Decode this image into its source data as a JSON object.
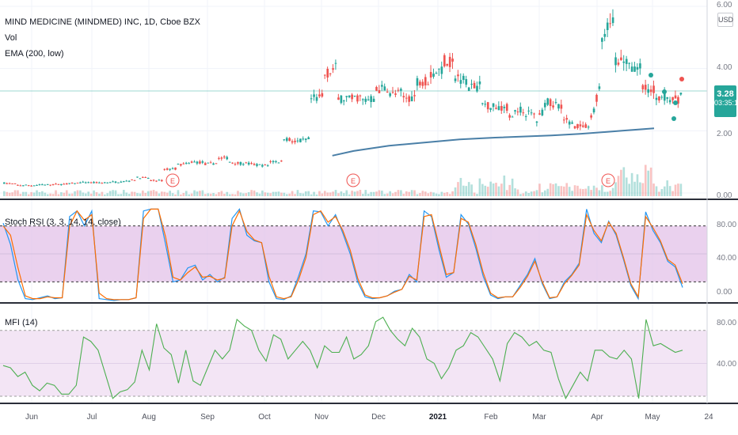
{
  "header": {
    "symbol_title": "MIND MEDICINE (MINDMED) INC, 1D, Cboe BZX",
    "vol_label": "Vol",
    "ema_label": "EMA (200, low)"
  },
  "currency": "USD",
  "last_price": {
    "value": "3.28",
    "countdown": "03:35:12"
  },
  "stoch_label": "Stoch RSI (3, 3, 14, 14, close)",
  "mfi_label": "MFI (14)",
  "colors": {
    "up": "#26a69a",
    "down": "#ef5350",
    "ema": "#4a7fa7",
    "k_line": "#2196f3",
    "d_line": "#ff6d00",
    "stoch_band": "#e1bee7",
    "mfi_band": "#f3e5f5",
    "mfi_line": "#4caf50"
  },
  "chart_data": [
    {
      "type": "candlestick",
      "title": "MIND MEDICINE (MINDMED) INC, 1D, Cboe BZX",
      "x_tick_labels": [
        "Jun",
        "Jul",
        "Aug",
        "Sep",
        "Oct",
        "Nov",
        "Dec",
        "2021",
        "Feb",
        "Mar",
        "Apr",
        "May",
        "24"
      ],
      "y_tick_labels": [
        "0.00",
        "2.00",
        "4.00",
        "6.00"
      ],
      "ylim": [
        0,
        6
      ],
      "price_path": [
        [
          0.32,
          0.32
        ],
        [
          0.28,
          0.25
        ],
        [
          0.25,
          0.24
        ],
        [
          0.27,
          0.26
        ],
        [
          0.28,
          0.27
        ],
        [
          0.3,
          0.3
        ],
        [
          0.34,
          0.33
        ],
        [
          0.33,
          0.32
        ],
        [
          0.34,
          0.35
        ],
        [
          0.36,
          0.37
        ],
        [
          0.44,
          0.5
        ],
        [
          0.48,
          0.4
        ],
        [
          0.4,
          0.75
        ],
        [
          0.79,
          0.9
        ],
        [
          0.94,
          1.0
        ],
        [
          0.98,
          0.92
        ],
        [
          0.96,
          1.1
        ],
        [
          1.14,
          1.0
        ],
        [
          0.94,
          0.96
        ],
        [
          0.91,
          0.9
        ],
        [
          0.88,
          1.02
        ],
        [
          1.0,
          1.8
        ],
        [
          1.62,
          1.64
        ],
        [
          1.72,
          3.0
        ],
        [
          3.08,
          3.78
        ],
        [
          4.01,
          3.02
        ],
        [
          3.05,
          3.0
        ],
        [
          3.1,
          2.95
        ],
        [
          3.05,
          3.3
        ],
        [
          3.4,
          3.15
        ],
        [
          3.22,
          3.05
        ],
        [
          3.1,
          3.6
        ],
        [
          3.62,
          3.8
        ],
        [
          3.98,
          4.28
        ],
        [
          4.12,
          3.72
        ],
        [
          3.64,
          3.38
        ],
        [
          3.44,
          2.86
        ],
        [
          2.78,
          2.78
        ],
        [
          2.76,
          2.46
        ],
        [
          2.7,
          2.6
        ],
        [
          2.5,
          2.22
        ],
        [
          2.94,
          2.9
        ],
        [
          2.84,
          2.36
        ],
        [
          2.24,
          2.16
        ],
        [
          2.1,
          2.0
        ],
        [
          3.6,
          4.8
        ],
        [
          5.8,
          4.2
        ],
        [
          4.28,
          4.06
        ],
        [
          4.0,
          3.38
        ],
        [
          3.3,
          3.1
        ],
        [
          3.12,
          3.0
        ],
        [
          3.02,
          3.28
        ]
      ],
      "ema_200": [
        [
          0.47,
          1.2
        ],
        [
          0.5,
          1.35
        ],
        [
          0.55,
          1.52
        ],
        [
          0.6,
          1.62
        ],
        [
          0.65,
          1.72
        ],
        [
          0.7,
          1.78
        ],
        [
          0.78,
          1.85
        ],
        [
          0.82,
          1.9
        ],
        [
          0.88,
          2.0
        ],
        [
          0.925,
          2.08
        ]
      ],
      "earnings_markers": [
        "E",
        "E",
        "E"
      ]
    },
    {
      "type": "line",
      "title": "Stoch RSI (3, 3, 14, 14, close)",
      "y_tick_labels": [
        "0.00",
        "40.00",
        "80.00"
      ],
      "ylim": [
        0,
        100
      ],
      "bands": [
        20,
        80
      ],
      "series": [
        {
          "name": "K",
          "values": [
            83,
            60,
            22,
            2,
            1,
            3,
            5,
            2,
            3,
            90,
            96,
            80,
            96,
            2,
            1,
            0,
            1,
            1,
            3,
            96,
            98,
            98,
            60,
            20,
            22,
            35,
            38,
            22,
            28,
            20,
            25,
            88,
            98,
            70,
            64,
            62,
            20,
            2,
            1,
            5,
            26,
            50,
            96,
            95,
            80,
            92,
            72,
            50,
            20,
            4,
            2,
            3,
            5,
            10,
            12,
            28,
            20,
            96,
            90,
            55,
            25,
            30,
            92,
            82,
            56,
            26,
            6,
            2,
            4,
            4,
            16,
            28,
            45,
            18,
            2,
            4,
            20,
            28,
            40,
            98,
            72,
            62,
            85,
            70,
            44,
            16,
            2,
            95,
            75,
            62,
            42,
            36,
            14
          ]
        },
        {
          "name": "D",
          "values": [
            80,
            70,
            35,
            5,
            2,
            2,
            4,
            3,
            3,
            80,
            96,
            86,
            92,
            8,
            2,
            1,
            1,
            1,
            3,
            88,
            98,
            98,
            68,
            25,
            22,
            30,
            36,
            25,
            26,
            22,
            24,
            80,
            96,
            74,
            65,
            62,
            26,
            4,
            2,
            4,
            22,
            46,
            92,
            96,
            84,
            90,
            75,
            54,
            24,
            6,
            3,
            3,
            5,
            9,
            12,
            26,
            22,
            90,
            92,
            60,
            28,
            30,
            88,
            84,
            60,
            30,
            8,
            3,
            4,
            4,
            14,
            26,
            42,
            20,
            3,
            4,
            18,
            27,
            38,
            92,
            75,
            64,
            84,
            72,
            46,
            18,
            4,
            90,
            78,
            64,
            44,
            38,
            18
          ]
        }
      ]
    },
    {
      "type": "line",
      "title": "MFI (14)",
      "y_tick_labels": [
        "40.00",
        "80.00"
      ],
      "ylim": [
        15,
        100
      ],
      "bands": [
        20,
        80
      ],
      "series": [
        {
          "name": "MFI",
          "values": [
            48,
            46,
            38,
            42,
            30,
            25,
            32,
            30,
            22,
            22,
            30,
            74,
            70,
            62,
            40,
            18,
            24,
            26,
            33,
            62,
            44,
            86,
            64,
            58,
            32,
            62,
            34,
            30,
            46,
            62,
            54,
            62,
            90,
            84,
            80,
            62,
            52,
            76,
            72,
            54,
            62,
            70,
            62,
            46,
            66,
            60,
            60,
            74,
            54,
            58,
            66,
            88,
            92,
            80,
            72,
            66,
            82,
            74,
            54,
            50,
            36,
            46,
            62,
            66,
            78,
            74,
            64,
            54,
            34,
            68,
            78,
            74,
            66,
            70,
            62,
            60,
            36,
            18,
            30,
            42,
            34,
            62,
            62,
            56,
            54,
            62,
            54,
            18,
            90,
            66,
            68,
            64,
            60,
            62
          ]
        }
      ]
    }
  ]
}
